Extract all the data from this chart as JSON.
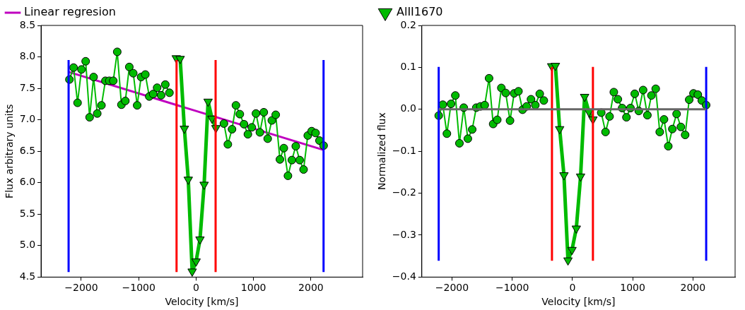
{
  "chart_data": [
    {
      "type": "line",
      "xlabel": "Velocity [km/s]",
      "ylabel": "Flux arbitrary units",
      "xlim": [
        -2700,
        2900
      ],
      "ylim": [
        4.5,
        8.5
      ],
      "xticks": [
        -2000,
        -1000,
        0,
        1000,
        2000
      ],
      "yticks": [
        {
          "value": 4.5,
          "label": "4.5"
        },
        {
          "value": 5,
          "label": "5.0"
        },
        {
          "value": 5.5,
          "label": "5.5"
        },
        {
          "value": 6,
          "label": "6.0"
        },
        {
          "value": 6.5,
          "label": "6.5"
        },
        {
          "value": 7,
          "label": "7.0"
        },
        {
          "value": 7.5,
          "label": "7.5"
        },
        {
          "value": 8,
          "label": "8.0"
        },
        {
          "value": 8.5,
          "label": "8.5"
        }
      ],
      "grid": false,
      "legend": "top left",
      "series": [
        {
          "type": "line",
          "color": "#0000ff",
          "marker": "none",
          "x": [
            -2220,
            -2220
          ],
          "values": [
            4.58,
            7.95
          ]
        },
        {
          "type": "line",
          "color": "#0000ff",
          "marker": "none",
          "x": [
            2220,
            2220
          ],
          "values": [
            4.58,
            7.95
          ]
        },
        {
          "type": "line",
          "color": "#ff0000",
          "marker": "none",
          "x": [
            -340,
            -340
          ],
          "values": [
            4.58,
            7.95
          ]
        },
        {
          "type": "line",
          "color": "#ff0000",
          "marker": "none",
          "x": [
            340,
            340
          ],
          "values": [
            4.58,
            7.95
          ]
        },
        {
          "type": "line",
          "color": "#00bb00",
          "marker": "circle",
          "x": [
            -2206,
            -2133,
            -2064,
            -1996,
            -1923,
            -1854,
            -1785,
            -1721,
            -1648,
            -1579,
            -1511,
            -1442,
            -1373,
            -1300,
            -1232,
            -1163,
            -1094,
            -1026,
            -957,
            -884,
            -815,
            -747,
            -678,
            -609,
            -536,
            -464
          ],
          "values": [
            7.64,
            7.83,
            7.27,
            7.8,
            7.93,
            7.04,
            7.68,
            7.1,
            7.23,
            7.62,
            7.62,
            7.62,
            8.08,
            7.24,
            7.3,
            7.84,
            7.74,
            7.23,
            7.68,
            7.72,
            7.37,
            7.41,
            7.51,
            7.39,
            7.56,
            7.43
          ]
        },
        {
          "type": "line",
          "color": "#00bb00",
          "marker": "circle",
          "x": [
            485,
            553,
            626,
            694,
            762,
            834,
            902,
            970,
            1043,
            1111,
            1179,
            1247,
            1319,
            1387,
            1460,
            1528,
            1600,
            1668,
            1736,
            1804,
            1872,
            1945,
            2013,
            2081,
            2149,
            2221
          ],
          "values": [
            6.94,
            6.61,
            6.85,
            7.23,
            7.09,
            6.93,
            6.77,
            6.88,
            7.1,
            6.8,
            7.12,
            6.7,
            6.99,
            7.08,
            6.37,
            6.55,
            6.11,
            6.36,
            6.58,
            6.36,
            6.21,
            6.75,
            6.82,
            6.79,
            6.67,
            6.59
          ]
        },
        {
          "type": "line",
          "color": "#00bb00",
          "marker": "triangle",
          "x": [
            -345,
            -277,
            -204,
            -136,
            -68,
            0,
            68,
            140,
            209,
            277,
            345
          ],
          "values": [
            7.98,
            7.97,
            6.86,
            6.05,
            4.59,
            4.75,
            5.1,
            5.97,
            7.29,
            7.02,
            6.87
          ]
        },
        {
          "type": "line",
          "name": "Linear regresion",
          "color": "#bf00bf",
          "marker": "none",
          "x": [
            -2220,
            2220
          ],
          "values": [
            7.76,
            6.52
          ]
        }
      ]
    },
    {
      "type": "line",
      "xlabel": "Velocity [km/s]",
      "ylabel": "Normalized flux",
      "xlim": [
        -2500,
        2700
      ],
      "ylim": [
        -0.4,
        0.2
      ],
      "xticks": [
        -2000,
        -1000,
        0,
        1000,
        2000
      ],
      "yticks": [
        {
          "value": -0.4,
          "label": "−0.4"
        },
        {
          "value": -0.3,
          "label": "−0.3"
        },
        {
          "value": -0.2,
          "label": "−0.2"
        },
        {
          "value": -0.1,
          "label": "−0.1"
        },
        {
          "value": 0,
          "label": "0.0"
        },
        {
          "value": 0.1,
          "label": "0.1"
        },
        {
          "value": 0.2,
          "label": "0.2"
        }
      ],
      "grid": false,
      "legend": "top left",
      "series": [
        {
          "type": "line",
          "color": "#666666",
          "marker": "none",
          "x": [
            -2220,
            2220
          ],
          "values": [
            0,
            0
          ]
        },
        {
          "type": "line",
          "color": "#0000ff",
          "marker": "none",
          "x": [
            -2220,
            -2220
          ],
          "values": [
            -0.361,
            0.101
          ]
        },
        {
          "type": "line",
          "color": "#0000ff",
          "marker": "none",
          "x": [
            2220,
            2220
          ],
          "values": [
            -0.361,
            0.101
          ]
        },
        {
          "type": "line",
          "color": "#ff0000",
          "marker": "none",
          "x": [
            -340,
            -340
          ],
          "values": [
            -0.361,
            0.101
          ]
        },
        {
          "type": "line",
          "color": "#ff0000",
          "marker": "none",
          "x": [
            340,
            340
          ],
          "values": [
            -0.361,
            0.101
          ]
        },
        {
          "type": "line",
          "color": "#00bb00",
          "marker": "circle",
          "x": [
            -2220,
            -2152,
            -2084,
            -2016,
            -1944,
            -1876,
            -1804,
            -1736,
            -1664,
            -1596,
            -1528,
            -1456,
            -1384,
            -1316,
            -1248,
            -1180,
            -1108,
            -1036,
            -968,
            -896,
            -828,
            -760,
            -688,
            -616,
            -543,
            -475
          ],
          "values": [
            -0.015,
            0.011,
            -0.058,
            0.013,
            0.033,
            -0.081,
            0.004,
            -0.07,
            -0.048,
            0.004,
            0.007,
            0.01,
            0.074,
            -0.035,
            -0.025,
            0.051,
            0.039,
            -0.027,
            0.038,
            0.043,
            -0.001,
            0.007,
            0.024,
            0.01,
            0.037,
            0.021
          ]
        },
        {
          "type": "line",
          "color": "#00bb00",
          "marker": "circle",
          "x": [
            478,
            549,
            616,
            687,
            754,
            825,
            896,
            963,
            1034,
            1101,
            1173,
            1244,
            1311,
            1382,
            1449,
            1520,
            1591,
            1658,
            1729,
            1800,
            1871,
            1938,
            2009,
            2081,
            2147,
            2219
          ],
          "values": [
            -0.008,
            -0.054,
            -0.017,
            0.041,
            0.024,
            0.003,
            -0.019,
            0.003,
            0.037,
            -0.004,
            0.046,
            -0.014,
            0.033,
            0.049,
            -0.054,
            -0.024,
            -0.088,
            -0.047,
            -0.011,
            -0.042,
            -0.061,
            0.023,
            0.038,
            0.035,
            0.021,
            0.01
          ]
        },
        {
          "type": "line",
          "name": "AlII1670",
          "color": "#00bb00",
          "marker": "triangle",
          "x": [
            -345,
            -283,
            -212,
            -141,
            -74,
            -7,
            64,
            135,
            202,
            273,
            340
          ],
          "values": [
            0.103,
            0.104,
            -0.047,
            -0.157,
            -0.36,
            -0.335,
            -0.284,
            -0.16,
            0.03,
            -0.006,
            -0.024
          ]
        }
      ]
    }
  ]
}
